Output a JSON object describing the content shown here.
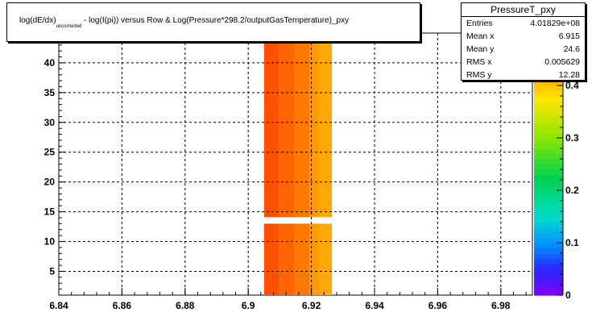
{
  "title": {
    "prefix": "log(dE/dx)",
    "subscript": "uncorrected",
    "suffix": " - log(I(pi)) versus Row & Log(Pressure*298.2/outputGasTemperature)_pxy"
  },
  "stats": {
    "name": "PressureT_pxy",
    "rows": [
      {
        "key": "Entries",
        "value": "4.01829e+08"
      },
      {
        "key": "Mean x",
        "value": "6.915"
      },
      {
        "key": "Mean y",
        "value": "24.6"
      },
      {
        "key": "RMS x",
        "value": "0.005629"
      },
      {
        "key": "RMS y",
        "value": "12.28"
      }
    ]
  },
  "chart_data": {
    "type": "heatmap",
    "title": "log(dE/dx)_uncorrected - log(I(pi)) versus Row & Log(Pressure*298.2/outputGasTemperature)_pxy",
    "xlabel": "",
    "ylabel": "",
    "xlim": [
      6.84,
      6.99
    ],
    "ylim": [
      1,
      45
    ],
    "x_ticks": [
      "6.84",
      "6.86",
      "6.88",
      "6.9",
      "6.92",
      "6.94",
      "6.96",
      "6.98"
    ],
    "y_ticks": [
      "5",
      "10",
      "15",
      "20",
      "25",
      "30",
      "35",
      "40"
    ],
    "z_ticks": [
      "0",
      "0.1",
      "0.2",
      "0.3",
      "0.4"
    ],
    "zlim": [
      0,
      0.5
    ],
    "grid": true,
    "legend": "colorbar-right",
    "columns": [
      {
        "x0": 6.905,
        "x1": 6.9098,
        "z": 0.47
      },
      {
        "x0": 6.9098,
        "x1": 6.9147,
        "z": 0.46
      },
      {
        "x0": 6.9147,
        "x1": 6.9195,
        "z": 0.45
      },
      {
        "x0": 6.9195,
        "x1": 6.9225,
        "z": 0.43
      },
      {
        "x0": 6.9225,
        "x1": 6.9265,
        "z": 0.42
      }
    ],
    "gap_y": [
      13.0,
      14.1
    ]
  }
}
